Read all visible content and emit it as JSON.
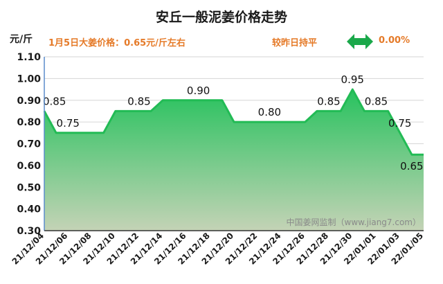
{
  "header": {
    "title": "安丘一般泥姜价格走势",
    "unit": "元/斤",
    "price_text": "1月5日大姜价格：0.65元/斤左右",
    "change_text": "较昨日持平",
    "change_value": "0.00%",
    "change_icon": "double-arrow-icon",
    "accent_color": "#e57a28",
    "arrow_color": "#1aa84a"
  },
  "watermark": "中国姜网监制（www.jiang7.com）",
  "chart_data": {
    "type": "area",
    "title": "安丘一般泥姜价格走势",
    "ylabel": "元/斤",
    "ylim": [
      0.3,
      1.1
    ],
    "yticks": [
      "0.30",
      "0.40",
      "0.50",
      "0.60",
      "0.70",
      "0.80",
      "0.90",
      "1.00",
      "1.10"
    ],
    "x_labels": [
      "21/12/04",
      "21/12/06",
      "21/12/08",
      "21/12/10",
      "21/12/12",
      "21/12/14",
      "21/12/16",
      "21/12/18",
      "21/12/20",
      "21/12/22",
      "21/12/24",
      "21/12/26",
      "21/12/28",
      "21/12/30",
      "22/01/01",
      "22/01/03",
      "22/01/05"
    ],
    "x": [
      "21/12/04",
      "21/12/05",
      "21/12/06",
      "21/12/07",
      "21/12/08",
      "21/12/09",
      "21/12/10",
      "21/12/11",
      "21/12/12",
      "21/12/13",
      "21/12/14",
      "21/12/15",
      "21/12/16",
      "21/12/17",
      "21/12/18",
      "21/12/19",
      "21/12/20",
      "21/12/21",
      "21/12/22",
      "21/12/23",
      "21/12/24",
      "21/12/25",
      "21/12/26",
      "21/12/27",
      "21/12/28",
      "21/12/29",
      "21/12/30",
      "21/12/31",
      "22/01/01",
      "22/01/02",
      "22/01/03",
      "22/01/04",
      "22/01/05"
    ],
    "values": [
      0.85,
      0.75,
      0.75,
      0.75,
      0.75,
      0.75,
      0.85,
      0.85,
      0.85,
      0.85,
      0.9,
      0.9,
      0.9,
      0.9,
      0.9,
      0.9,
      0.8,
      0.8,
      0.8,
      0.8,
      0.8,
      0.8,
      0.8,
      0.85,
      0.85,
      0.85,
      0.95,
      0.85,
      0.85,
      0.85,
      0.75,
      0.65,
      0.65
    ],
    "data_labels": [
      {
        "x": "21/12/04",
        "value": "0.85"
      },
      {
        "x": "21/12/06",
        "value": "0.75"
      },
      {
        "x": "21/12/12",
        "value": "0.85"
      },
      {
        "x": "21/12/17",
        "value": "0.90"
      },
      {
        "x": "21/12/23",
        "value": "0.80"
      },
      {
        "x": "21/12/28",
        "value": "0.85"
      },
      {
        "x": "21/12/30",
        "value": "0.95"
      },
      {
        "x": "22/01/01",
        "value": "0.85"
      },
      {
        "x": "22/01/03",
        "value": "0.75"
      },
      {
        "x": "22/01/04",
        "value": "0.65"
      }
    ],
    "grid": true,
    "legend": "none",
    "line_color": "#22bb55"
  }
}
